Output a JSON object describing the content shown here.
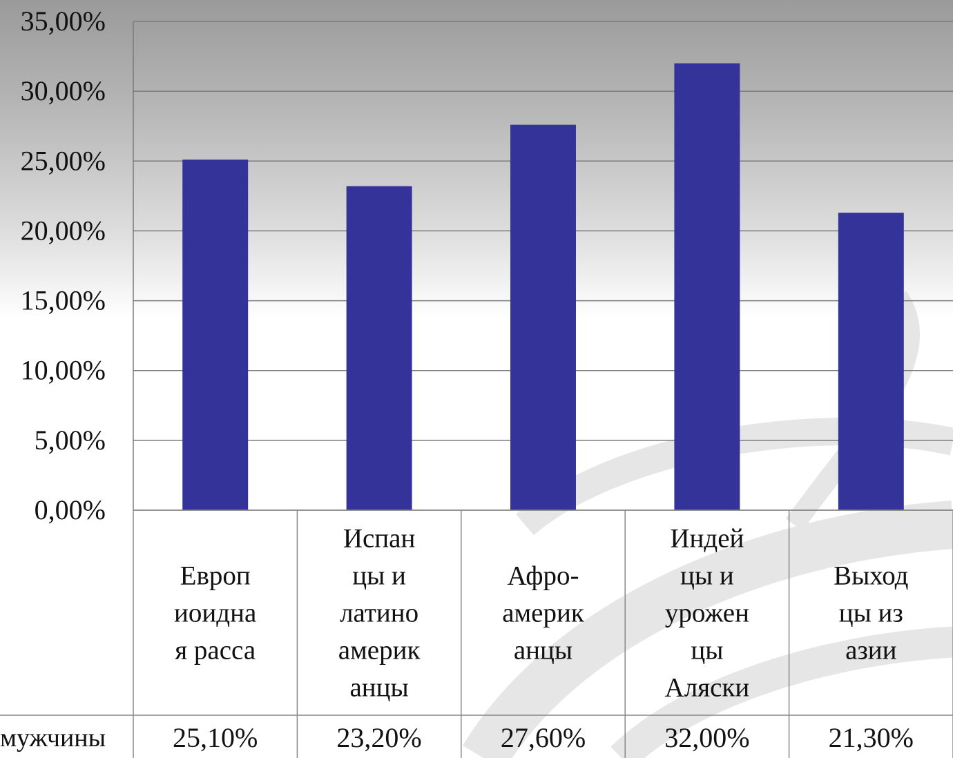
{
  "chart_data": {
    "type": "bar",
    "categories": [
      [
        "Европ",
        "иоидна",
        "я расса"
      ],
      [
        "Испан",
        "цы и",
        "латино",
        "америк",
        "анцы"
      ],
      [
        "Афро-",
        "америк",
        "анцы"
      ],
      [
        "Индей",
        "цы и",
        "урожен",
        "цы",
        "Аляски"
      ],
      [
        "Выход",
        "цы из",
        "азии"
      ]
    ],
    "series": [
      {
        "name": "мужчины",
        "values": [
          25.1,
          23.2,
          27.6,
          32.0,
          21.3
        ],
        "value_labels": [
          "25,10%",
          "23,20%",
          "27,60%",
          "32,00%",
          "21,30%"
        ]
      }
    ],
    "ylim": [
      0,
      35
    ],
    "yticks": [
      0,
      5,
      10,
      15,
      20,
      25,
      30,
      35
    ],
    "ytick_labels": [
      "0,00%",
      "5,00%",
      "10,00%",
      "15,00%",
      "20,00%",
      "25,00%",
      "30,00%",
      "35,00%"
    ],
    "grid": true,
    "data_table": true,
    "bar_color": "#333399"
  },
  "colors": {
    "grid": "#7a7a7a",
    "table_border": "#888888",
    "swirl": "#cfcfcf"
  }
}
